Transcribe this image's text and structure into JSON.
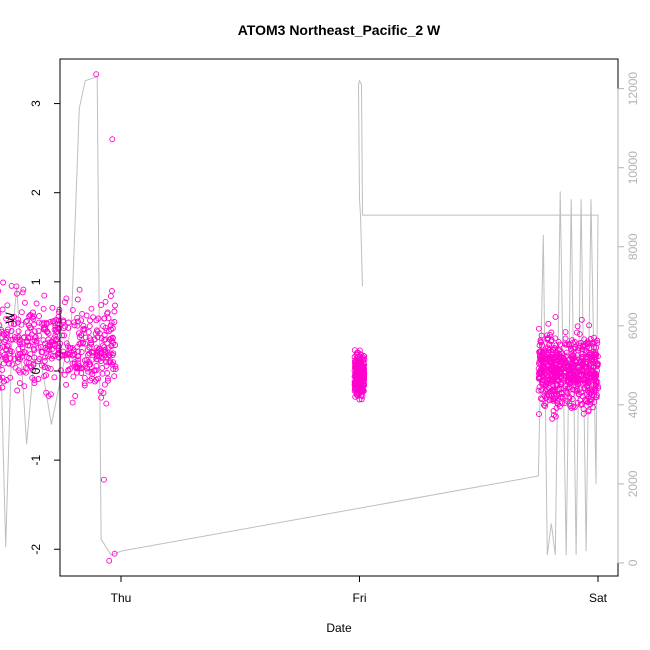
{
  "chart_data": {
    "type": "scatter",
    "title": "ATOM3 Northeast_Pacific_2 W",
    "xlabel": "Date",
    "ylabel": "W",
    "x_ticks": [
      "Thu",
      "Fri",
      "Sat"
    ],
    "ylim": [
      -2.3,
      3.5
    ],
    "y_ticks": [
      "-2",
      "-1",
      "0",
      "1",
      "2",
      "3"
    ],
    "y2lim": [
      -330,
      12750
    ],
    "y2_ticks": [
      "0",
      "2000",
      "4000",
      "6000",
      "8000",
      "10000",
      "12000"
    ],
    "grid": false,
    "series": [
      {
        "mark": "points (open circles)",
        "color": "#ff00cc",
        "groups": [
          {
            "x_range_hours": [
              -18,
              -0.5
            ],
            "y_typical_range": [
              -1.0,
              1.6
            ],
            "y_outliers": [
              3.33,
              2.6,
              -2.05,
              -2.13,
              -1.22
            ]
          },
          {
            "x_range_hours": [
              23.5,
              24.5
            ],
            "y_typical_range": [
              -0.62,
              0.52
            ]
          },
          {
            "x_range_hours": [
              42,
              48
            ],
            "y_typical_range": [
              -1.02,
              1.03
            ]
          }
        ]
      },
      {
        "mark": "line",
        "color": "#bfbfbf",
        "axis": "right",
        "points": [
          [
            -16.0,
            6800
          ],
          [
            -16.0,
            5700
          ],
          [
            -15.8,
            200
          ],
          [
            -15.3,
            7000
          ],
          [
            -14.8,
            200
          ],
          [
            -14.0,
            500
          ],
          [
            -13.5,
            10000
          ],
          [
            -13.0,
            200
          ],
          [
            -12.2,
            6200
          ],
          [
            -11.6,
            400
          ],
          [
            -11.0,
            5500
          ],
          [
            -10.5,
            7000
          ],
          [
            -9.5,
            3000
          ],
          [
            -8.5,
            5800
          ],
          [
            -7.0,
            3500
          ],
          [
            -5.0,
            6000
          ],
          [
            -4.2,
            11500
          ],
          [
            -3.6,
            12200
          ],
          [
            -2.4,
            12300
          ],
          [
            -2.0,
            600
          ],
          [
            -1.0,
            200
          ],
          [
            0.0,
            300
          ],
          [
            42.0,
            2200
          ],
          [
            42.5,
            8300
          ],
          [
            42.9,
            200
          ],
          [
            43.3,
            1000
          ],
          [
            43.7,
            200
          ],
          [
            44.2,
            9400
          ],
          [
            44.8,
            200
          ],
          [
            45.3,
            9200
          ],
          [
            45.8,
            200
          ],
          [
            46.3,
            9200
          ],
          [
            46.8,
            300
          ],
          [
            47.3,
            9200
          ],
          [
            47.8,
            2000
          ],
          [
            48.0,
            8800
          ],
          [
            24.3,
            8800
          ],
          [
            24.2,
            12100
          ],
          [
            24.0,
            12200
          ],
          [
            23.9,
            12100
          ],
          [
            24.0,
            9200
          ],
          [
            24.1,
            8800
          ],
          [
            24.3,
            7000
          ]
        ]
      }
    ]
  }
}
